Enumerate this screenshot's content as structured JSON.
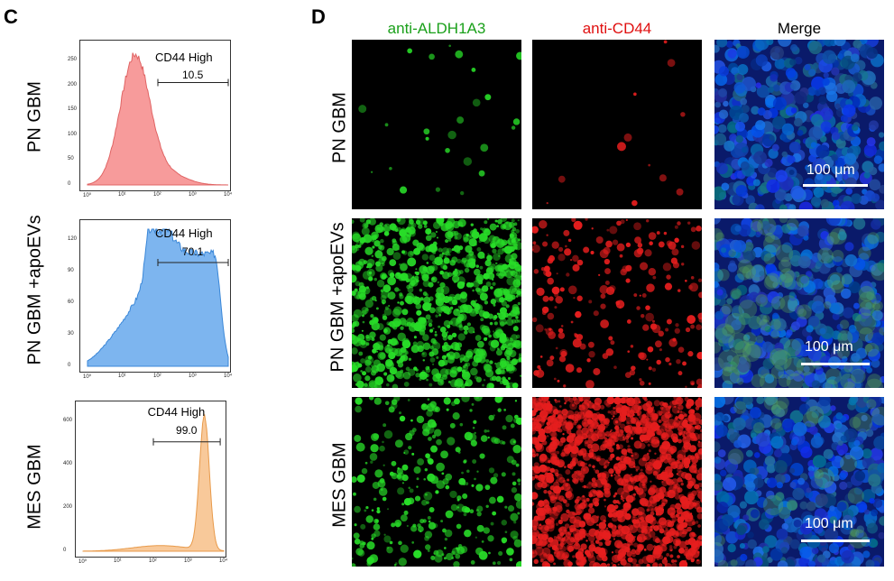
{
  "panel_c": {
    "letter": "C",
    "rows": [
      {
        "label": "PN GBM",
        "gate_label": "CD44 High",
        "gate_value": "10.5",
        "color": "#f79b9b",
        "stroke": "#e06464",
        "yticks": [
          "0",
          "50",
          "100",
          "150",
          "200",
          "250"
        ],
        "xticks": [
          "10⁰",
          "10¹",
          "10²",
          "10³",
          "10⁴"
        ]
      },
      {
        "label": "PN GBM +apoEVs",
        "gate_label": "CD44 High",
        "gate_value": "70.1",
        "color": "#7db5ef",
        "stroke": "#3a87d8",
        "yticks": [
          "0",
          "30",
          "60",
          "90",
          "120"
        ],
        "xticks": [
          "10⁰",
          "10¹",
          "10²",
          "10³",
          "10⁴"
        ]
      },
      {
        "label": "MES GBM",
        "gate_label": "CD44 High",
        "gate_value": "99.0",
        "color": "#f8c99a",
        "stroke": "#e89a4a",
        "yticks": [
          "0",
          "200",
          "400",
          "600"
        ],
        "xticks": [
          "10⁰",
          "10¹",
          "10²",
          "10³",
          "10⁴"
        ]
      }
    ]
  },
  "panel_d": {
    "letter": "D",
    "columns": [
      {
        "label": "anti-ALDH1A3",
        "color": "#1aa01a"
      },
      {
        "label": "anti-CD44",
        "color": "#e01010"
      },
      {
        "label": "Merge",
        "color": "#000000"
      }
    ],
    "rows": [
      "PN GBM",
      "PN GBM +apoEVs",
      "MES GBM"
    ],
    "scale_bar": "100 μm"
  }
}
